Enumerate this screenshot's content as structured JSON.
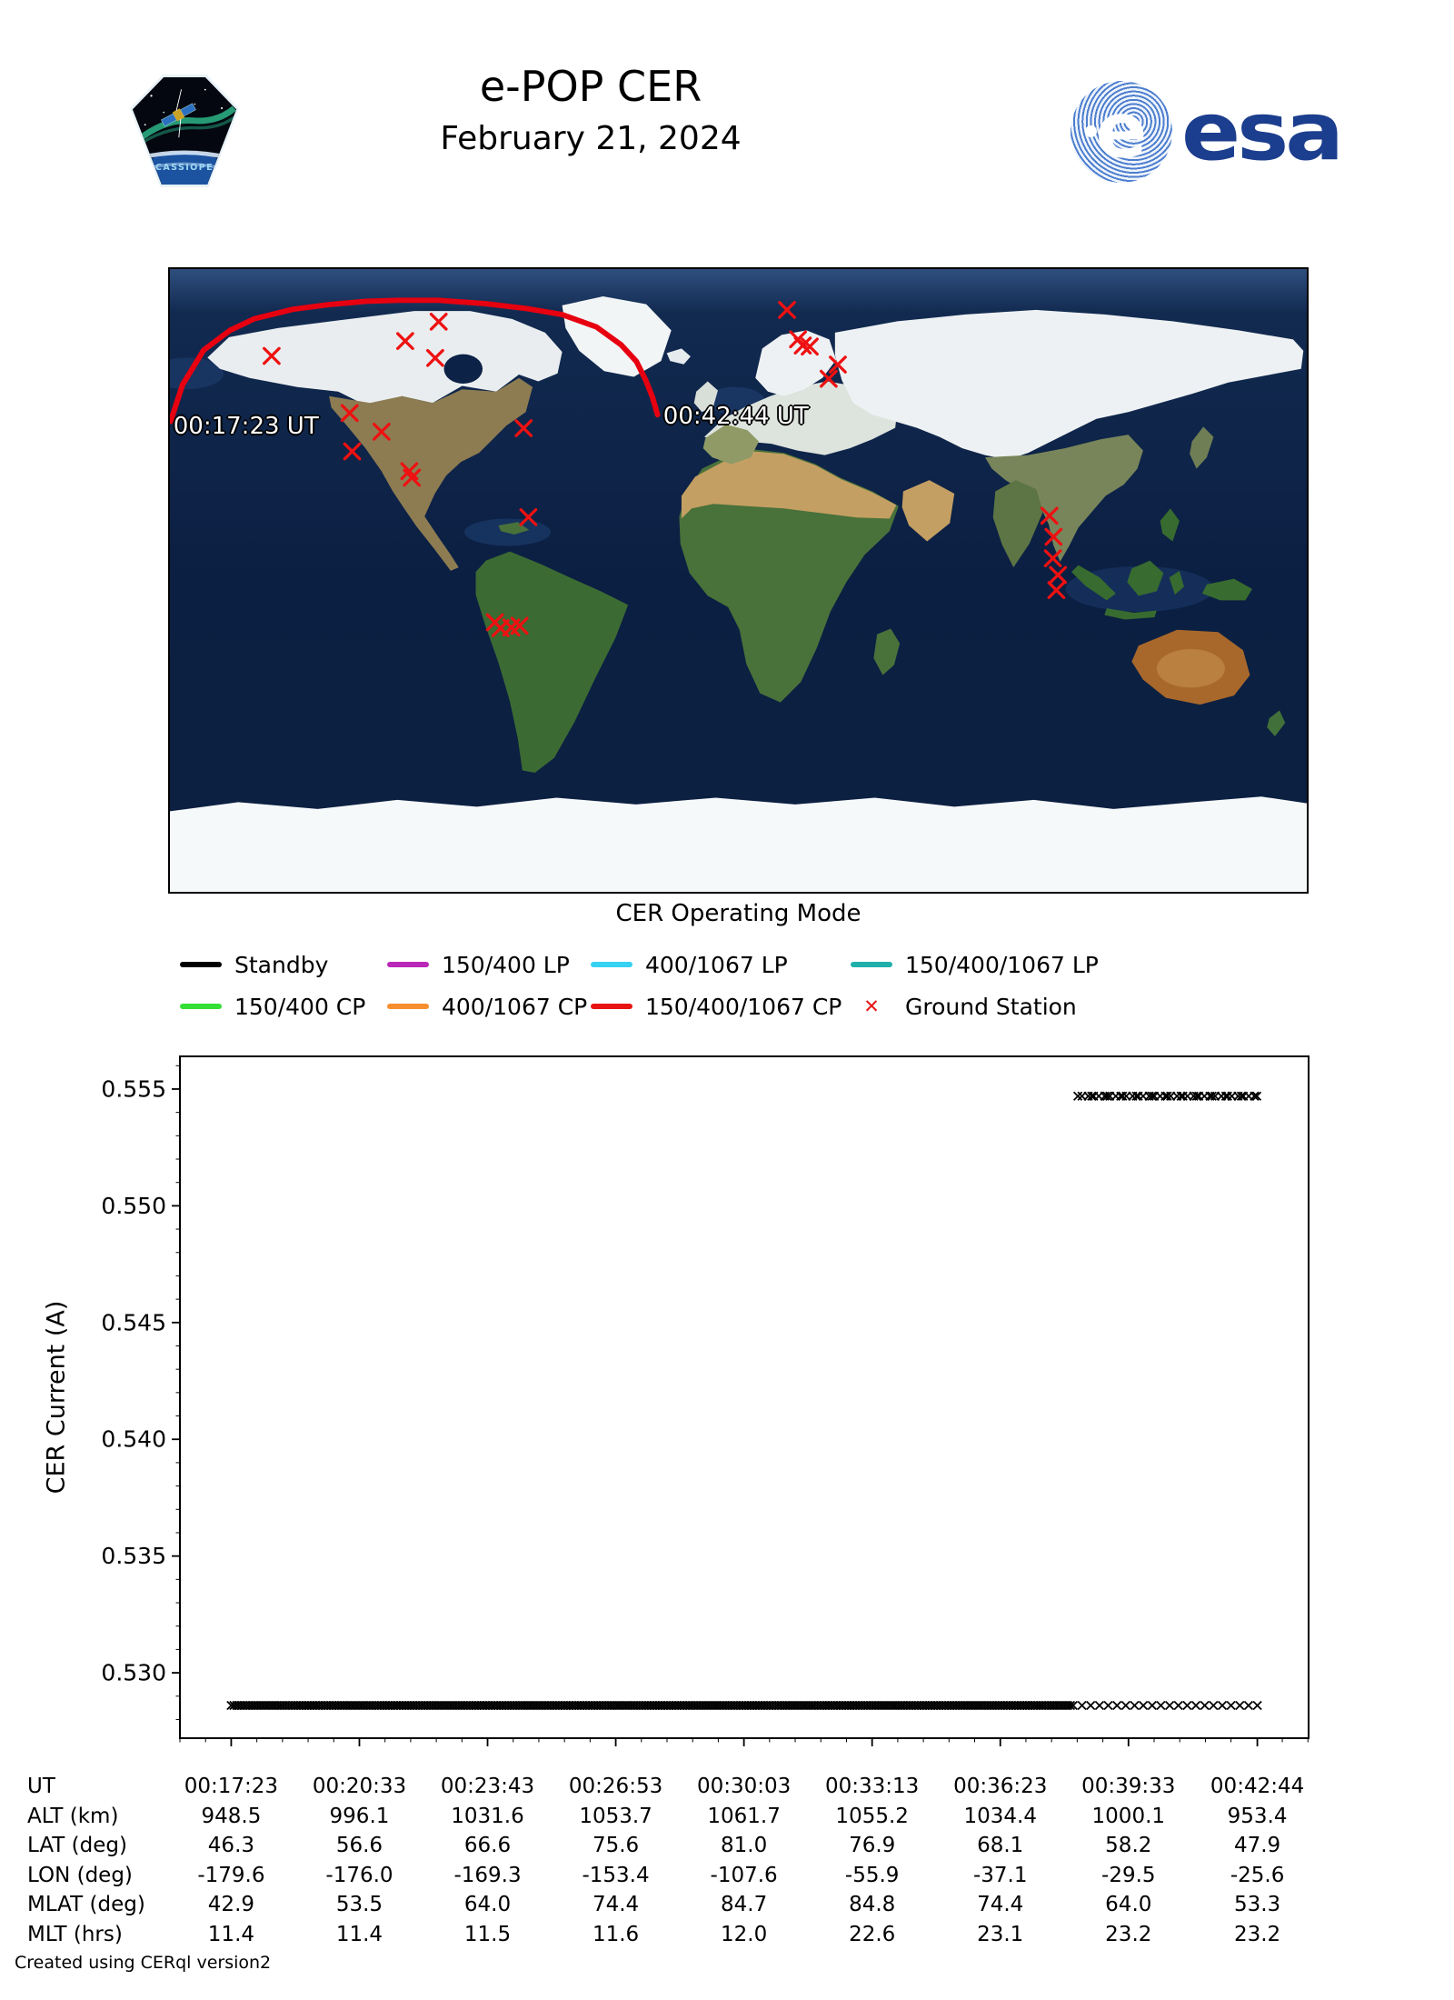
{
  "header": {
    "title": "e-POP CER",
    "date": "February 21, 2024",
    "patch_text": "CASSIOPE",
    "esa_text": "esa"
  },
  "map": {
    "track_start_label": "00:17:23 UT",
    "track_end_label": "00:42:44 UT",
    "track_color": "#e60010",
    "station_color": "#ee1111",
    "track_lonlat": [
      [
        -179.8,
        46.0
      ],
      [
        -176.0,
        56.6
      ],
      [
        -169.3,
        66.6
      ],
      [
        -161.0,
        72.3
      ],
      [
        -153.4,
        75.6
      ],
      [
        -141.0,
        78.4
      ],
      [
        -130.0,
        79.7
      ],
      [
        -118.0,
        80.7
      ],
      [
        -107.6,
        81.0
      ],
      [
        -95.0,
        81.0
      ],
      [
        -80.0,
        80.0
      ],
      [
        -67.0,
        78.6
      ],
      [
        -55.9,
        76.9
      ],
      [
        -45.0,
        73.3
      ],
      [
        -37.1,
        68.1
      ],
      [
        -32.3,
        63.3
      ],
      [
        -29.5,
        58.2
      ],
      [
        -27.2,
        53.0
      ],
      [
        -25.6,
        47.9
      ]
    ],
    "ground_stations_lonlat": [
      [
        -94.9,
        74.8
      ],
      [
        -105.5,
        69.2
      ],
      [
        -96.0,
        64.3
      ],
      [
        -147.8,
        64.9
      ],
      [
        -123.1,
        48.4
      ],
      [
        -113.0,
        43.0
      ],
      [
        -122.3,
        37.3
      ],
      [
        -104.2,
        31.6
      ],
      [
        -103.4,
        29.7
      ],
      [
        -68.0,
        44.0
      ],
      [
        -66.5,
        18.3
      ],
      [
        -77.1,
        -12.1
      ],
      [
        -75.3,
        -13.8
      ],
      [
        -71.9,
        -13.6
      ],
      [
        -69.3,
        -13.1
      ],
      [
        15.4,
        78.2
      ],
      [
        18.9,
        69.7
      ],
      [
        20.4,
        67.9
      ],
      [
        22.6,
        67.6
      ],
      [
        31.5,
        62.4
      ],
      [
        28.6,
        58.3
      ],
      [
        98.5,
        18.7
      ],
      [
        99.8,
        12.6
      ],
      [
        99.6,
        6.4
      ],
      [
        101.2,
        1.6
      ],
      [
        100.7,
        -2.8
      ]
    ]
  },
  "legend": {
    "title": "CER Operating Mode",
    "items": [
      {
        "label": "Standby",
        "color": "#000000",
        "type": "line"
      },
      {
        "label": "150/400 LP",
        "color": "#b928b9",
        "type": "line"
      },
      {
        "label": "400/1067 LP",
        "color": "#35d2f2",
        "type": "line"
      },
      {
        "label": "150/400/1067 LP",
        "color": "#1fb0ab",
        "type": "line"
      },
      {
        "label": "150/400 CP",
        "color": "#35df35",
        "type": "line"
      },
      {
        "label": "400/1067 CP",
        "color": "#f78f2e",
        "type": "line"
      },
      {
        "label": "150/400/1067 CP",
        "color": "#e81414",
        "type": "line"
      },
      {
        "label": "Ground Station",
        "color": "#e81414",
        "type": "marker-x"
      }
    ]
  },
  "chart_data": {
    "type": "scatter",
    "title": "",
    "xlabel": "",
    "ylabel": "CER Current (A)",
    "marker": "x",
    "marker_color": "#000000",
    "ylim": [
      0.5272,
      0.5564
    ],
    "yticks": [
      0.53,
      0.535,
      0.54,
      0.545,
      0.55,
      0.555
    ],
    "xtick_labels": [
      "00:17:23",
      "00:20:33",
      "00:23:43",
      "00:26:53",
      "00:30:03",
      "00:33:13",
      "00:36:23",
      "00:39:33",
      "00:42:44"
    ],
    "xtick_seconds": [
      0,
      190,
      380,
      570,
      760,
      950,
      1140,
      1330,
      1521
    ],
    "grid": false,
    "series": [
      {
        "name": "CER current low band",
        "current_a": 0.5286,
        "start_ut": "00:17:23",
        "end_ut": "00:42:44",
        "start_s": 0,
        "end_s": 1521,
        "density": "dense"
      },
      {
        "name": "CER current high band",
        "current_a": 0.5547,
        "start_ut": "00:38:18",
        "end_ut": "00:42:44",
        "start_s": 1255,
        "end_s": 1521,
        "density": "medium"
      }
    ]
  },
  "table": {
    "row_labels": [
      "UT",
      "ALT (km)",
      "LAT (deg)",
      "LON (deg)",
      "MLAT (deg)",
      "MLT (hrs)"
    ],
    "rows": [
      [
        "00:17:23",
        "00:20:33",
        "00:23:43",
        "00:26:53",
        "00:30:03",
        "00:33:13",
        "00:36:23",
        "00:39:33",
        "00:42:44"
      ],
      [
        "948.5",
        "996.1",
        "1031.6",
        "1053.7",
        "1061.7",
        "1055.2",
        "1034.4",
        "1000.1",
        "953.4"
      ],
      [
        "46.3",
        "56.6",
        "66.6",
        "75.6",
        "81.0",
        "76.9",
        "68.1",
        "58.2",
        "47.9"
      ],
      [
        "-179.6",
        "-176.0",
        "-169.3",
        "-153.4",
        "-107.6",
        "-55.9",
        "-37.1",
        "-29.5",
        "-25.6"
      ],
      [
        "42.9",
        "53.5",
        "64.0",
        "74.4",
        "84.7",
        "84.8",
        "74.4",
        "64.0",
        "53.3"
      ],
      [
        "11.4",
        "11.4",
        "11.5",
        "11.6",
        "12.0",
        "22.6",
        "23.1",
        "23.2",
        "23.2"
      ]
    ]
  },
  "footer": "Created using CERql version2"
}
